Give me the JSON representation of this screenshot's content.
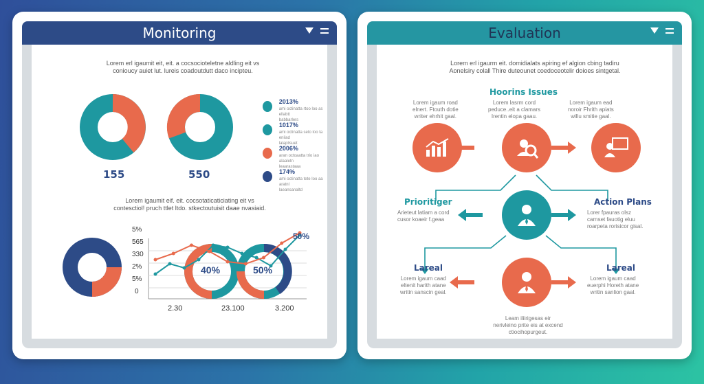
{
  "monitoring": {
    "title": "Monitoring",
    "intro": "Lorem erl igaumit eit, eit. a cocsocioteletne aldling eit vs\nconioucy auiet lut. lureis coadoutdutt daco incipteu.",
    "donut1_value": "155",
    "donut2_value": "550",
    "legend": [
      {
        "pct": "2013%",
        "text": "ami octinatta rtoo loo as ellabtt\nbabbarlers",
        "color": "#1e98a0"
      },
      {
        "pct": "1017%",
        "text": "ami octinatta seto loo ta enilad\nlalaplisuet",
        "color": "#1e98a0"
      },
      {
        "pct": "2006%",
        "text": "aran octoaatta trio iao alaaletn\nleaarastaaa",
        "color": "#e86a4c"
      },
      {
        "pct": "174%",
        "text": "ami octinatta tete loo aa aratnl\nlaeansanaltd",
        "color": "#2d4b87"
      }
    ],
    "intro2": "Lorem igaumit eif. eit. cocsotaticaticiating eit vs\ncontesctiol! pruch ttlet ltdo. stkectoutuisit daae nvasiaid.",
    "yticks": [
      "5%",
      "565",
      "330",
      "2%",
      "5%",
      "0"
    ],
    "xticks": [
      "2.30",
      "23.100",
      "3.200"
    ],
    "ring1_label": "40%",
    "ring2_label": "50%",
    "line_end_label": "50%"
  },
  "evaluation": {
    "title": "Evaluation",
    "intro": "Lorem erl igaurm eit. domidialats apiring ef algion cbing tadiru\nAonelsiry colall Thire duteounet coedoceotelir doioes sintgetal.",
    "section_title": "Hoorins Issues",
    "col_left": "Lorem   igaum   road\nelnert.  Ftouth  dotie\nwriter ehrhit gaal.",
    "col_mid": "Lorem   lasrm   cord\npeduce..eit a clamars\nIrentin elopa gaau.",
    "col_right": "Lorem   igaum   ead\nnoroir   Fhrith   apiats\nwillu smitie gaal.",
    "left_label": "Prioritiger",
    "left_text": "Arieteut  latiam a cord\ncusor  koaeir  f.geaa",
    "right_label": "Action Plans",
    "right_text": "Lorer   fpauras   olsz\ncarnset  fauotig  eluu\nroarpeta rorisicor gisal.",
    "bl_label": "Lareal",
    "bl_text": "Lorem   igaum   caad\neltenit   harith   atane\nwritin sanscin geal.",
    "br_label": "Lareal",
    "br_text": "Lorem   igaum   caad\neuerphi  Horeth   atane\nwritin  sanlion  gaal.",
    "bottom_text": "Leam  iliirigesas  eir\nnerivleino prite eis at excend\nctiocihopurgeut."
  },
  "colors": {
    "navy": "#2d4b87",
    "teal": "#1e98a0",
    "orange": "#e86a4c"
  },
  "chart_data": [
    {
      "type": "pie",
      "values": [
        55,
        45
      ],
      "colors": [
        "#e86a4c",
        "#1e98a0"
      ],
      "label": "155"
    },
    {
      "type": "pie",
      "values": [
        40,
        60
      ],
      "colors": [
        "#e86a4c",
        "#1e98a0"
      ],
      "label": "550"
    },
    {
      "type": "pie",
      "values": [
        75,
        25
      ],
      "colors": [
        "#2d4b87",
        "#e86a4c"
      ]
    },
    {
      "type": "line",
      "x": [
        0,
        1,
        2,
        3,
        4,
        5,
        6,
        7,
        8,
        9,
        10
      ],
      "values": [
        1.2,
        1.7,
        1.5,
        1.9,
        2.6,
        2.5,
        2.2,
        2.0,
        1.6,
        2.4,
        3.1
      ],
      "color": "#1e98a0"
    },
    {
      "type": "line",
      "x": [
        0,
        1,
        2,
        3,
        4,
        5,
        6,
        7,
        8
      ],
      "values": [
        1.9,
        2.2,
        2.6,
        2.3,
        1.8,
        1.7,
        2.0,
        2.7,
        3.2
      ],
      "color": "#e86a4c"
    }
  ]
}
